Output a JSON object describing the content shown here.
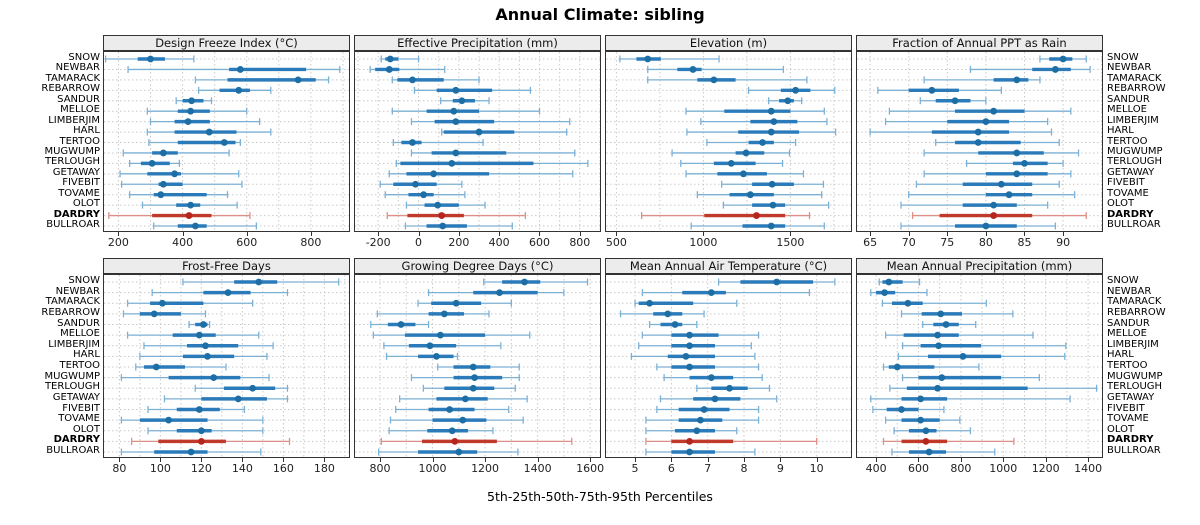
{
  "title": "Annual Climate: sibling",
  "caption": "5th-25th-50th-75th-95th Percentiles",
  "sites": [
    "SNOW",
    "NEWBAR",
    "TAMARACK",
    "REBARROW",
    "SANDUR",
    "MELLOE",
    "LIMBERJIM",
    "HARL",
    "TERTOO",
    "MUGWUMP",
    "TERLOUGH",
    "GETAWAY",
    "FIVEBIT",
    "TOVAME",
    "OLOT",
    "DARDRY",
    "BULLROAR"
  ],
  "highlight_site": "DARDRY",
  "colors": {
    "point": "#1d6ea5",
    "bar": "#2b7bba",
    "whisker": "#7cb1d6",
    "highlight_point": "#b6241e",
    "highlight_bar": "#c0392b",
    "highlight_whisker": "#dd8f88",
    "grid": "#c9c9c9",
    "strip_bg": "#ececec",
    "border": "#333333"
  },
  "chart_data": {
    "type": "dotplot",
    "note": "each site row = [p5, p25, p50, p75, p95] percentiles",
    "legend_position": "bottom-caption",
    "grid": "dotted",
    "panels": [
      {
        "title": "Design Freeze Index (°C)",
        "row": 0,
        "col": 0,
        "ticks": [
          200,
          400,
          600,
          800
        ],
        "xlim": [
          155,
          925
        ],
        "grid_step": 100,
        "values": [
          [
            160,
            260,
            300,
            345,
            435
          ],
          [
            230,
            545,
            580,
            785,
            890
          ],
          [
            440,
            540,
            760,
            815,
            855
          ],
          [
            450,
            515,
            575,
            610,
            675
          ],
          [
            380,
            400,
            428,
            465,
            490
          ],
          [
            290,
            385,
            425,
            485,
            600
          ],
          [
            300,
            375,
            417,
            485,
            640
          ],
          [
            290,
            375,
            483,
            568,
            675
          ],
          [
            295,
            385,
            530,
            565,
            580
          ],
          [
            215,
            305,
            340,
            385,
            545
          ],
          [
            235,
            270,
            305,
            360,
            390
          ],
          [
            205,
            290,
            375,
            395,
            575
          ],
          [
            210,
            325,
            340,
            400,
            585
          ],
          [
            235,
            310,
            332,
            475,
            540
          ],
          [
            275,
            380,
            425,
            455,
            570
          ],
          [
            170,
            305,
            420,
            490,
            610
          ],
          [
            310,
            385,
            440,
            475,
            630
          ]
        ]
      },
      {
        "title": "Effective Precipitation (mm)",
        "row": 0,
        "col": 1,
        "ticks": [
          -200,
          0,
          200,
          400,
          600,
          800
        ],
        "xlim": [
          -315,
          910
        ],
        "grid_step": 100,
        "values": [
          [
            -185,
            -165,
            -140,
            -100,
            0
          ],
          [
            -240,
            -215,
            -145,
            -95,
            130
          ],
          [
            -130,
            -105,
            -30,
            125,
            300
          ],
          [
            -20,
            90,
            185,
            365,
            555
          ],
          [
            110,
            170,
            215,
            280,
            350
          ],
          [
            -130,
            40,
            175,
            300,
            600
          ],
          [
            -35,
            80,
            185,
            375,
            750
          ],
          [
            115,
            125,
            300,
            475,
            735
          ],
          [
            -125,
            -85,
            -30,
            15,
            320
          ],
          [
            -35,
            65,
            185,
            435,
            775
          ],
          [
            -110,
            -90,
            165,
            570,
            840
          ],
          [
            -145,
            -60,
            75,
            350,
            765
          ],
          [
            -190,
            -125,
            -15,
            90,
            215
          ],
          [
            -165,
            -50,
            25,
            75,
            230
          ],
          [
            -60,
            30,
            95,
            200,
            330
          ],
          [
            -155,
            -55,
            115,
            225,
            530
          ],
          [
            -65,
            40,
            120,
            240,
            465
          ]
        ]
      },
      {
        "title": "Elevation (m)",
        "row": 0,
        "col": 2,
        "ticks": [
          500,
          1000,
          1500
        ],
        "xlim": [
          440,
          1860
        ],
        "grid_step": 250,
        "values": [
          [
            520,
            615,
            680,
            755,
            1090
          ],
          [
            680,
            850,
            940,
            990,
            1460
          ],
          [
            680,
            965,
            1060,
            1185,
            1595
          ],
          [
            1260,
            1445,
            1530,
            1615,
            1755
          ],
          [
            1375,
            1435,
            1485,
            1520,
            1565
          ],
          [
            900,
            1120,
            1390,
            1500,
            1695
          ],
          [
            985,
            1270,
            1405,
            1540,
            1710
          ],
          [
            905,
            1200,
            1390,
            1550,
            1760
          ],
          [
            1020,
            1260,
            1340,
            1405,
            1530
          ],
          [
            820,
            1185,
            1245,
            1350,
            1495
          ],
          [
            870,
            1060,
            1160,
            1300,
            1455
          ],
          [
            900,
            1080,
            1230,
            1365,
            1575
          ],
          [
            1105,
            1280,
            1395,
            1520,
            1690
          ],
          [
            965,
            1150,
            1270,
            1405,
            1680
          ],
          [
            1115,
            1280,
            1400,
            1470,
            1720
          ],
          [
            645,
            1005,
            1305,
            1470,
            1610
          ],
          [
            930,
            1225,
            1390,
            1470,
            1695
          ]
        ]
      },
      {
        "title": "Fraction of Annual PPT as Rain",
        "row": 0,
        "col": 3,
        "ticks": [
          65,
          70,
          75,
          80,
          85,
          90
        ],
        "xlim": [
          63.3,
          95.3
        ],
        "grid_step": 5,
        "values": [
          [
            87,
            88.2,
            90,
            91.2,
            93
          ],
          [
            78,
            86,
            89,
            91,
            93.5
          ],
          [
            72,
            81,
            84,
            85.5,
            87
          ],
          [
            66,
            70,
            73,
            76.5,
            82
          ],
          [
            71.5,
            73.5,
            76,
            78,
            80
          ],
          [
            67.5,
            76,
            81,
            85,
            91
          ],
          [
            67,
            75,
            80,
            83,
            88
          ],
          [
            65,
            73,
            79,
            83,
            88.5
          ],
          [
            73.5,
            76,
            79,
            84.5,
            89.5
          ],
          [
            72,
            79,
            84,
            87.5,
            92
          ],
          [
            77.5,
            83.5,
            85,
            88,
            90
          ],
          [
            72,
            80,
            84,
            88,
            91
          ],
          [
            71,
            77,
            82,
            86,
            89.5
          ],
          [
            70,
            80,
            83,
            86,
            91.5
          ],
          [
            69,
            77,
            81,
            84,
            88
          ],
          [
            70.5,
            74,
            81,
            86,
            93
          ],
          [
            69,
            76,
            80,
            84,
            89
          ]
        ]
      },
      {
        "title": "Frost-Free Days",
        "row": 1,
        "col": 0,
        "ticks": [
          80,
          100,
          120,
          140,
          160,
          180
        ],
        "xlim": [
          72.5,
          193
        ],
        "grid_step": 10,
        "values": [
          [
            111,
            136,
            148,
            157,
            187
          ],
          [
            96,
            121,
            133,
            144,
            162
          ],
          [
            84,
            95,
            101,
            121,
            145
          ],
          [
            82,
            90,
            97,
            110,
            122
          ],
          [
            114,
            117,
            121,
            123,
            124
          ],
          [
            84,
            106,
            119,
            127,
            148
          ],
          [
            92,
            113,
            122,
            138,
            155
          ],
          [
            90,
            111,
            123,
            136,
            152
          ],
          [
            88,
            92,
            98,
            112,
            132
          ],
          [
            81,
            104,
            126,
            139,
            153
          ],
          [
            117,
            131,
            145,
            156,
            162
          ],
          [
            102,
            120,
            138,
            152,
            162
          ],
          [
            94,
            108,
            119,
            129,
            141
          ],
          [
            81,
            90,
            104,
            123,
            150
          ],
          [
            94,
            108,
            120,
            125,
            150
          ],
          [
            86,
            99,
            120,
            132,
            163
          ],
          [
            81,
            97,
            115,
            123,
            149
          ]
        ]
      },
      {
        "title": "Growing Degree Days (°C)",
        "row": 1,
        "col": 1,
        "ticks": [
          800,
          1000,
          1200,
          1400,
          1600
        ],
        "xlim": [
          705,
          1645
        ],
        "grid_step": 100,
        "values": [
          [
            1195,
            1265,
            1350,
            1410,
            1590
          ],
          [
            985,
            1155,
            1255,
            1400,
            1500
          ],
          [
            945,
            995,
            1090,
            1185,
            1300
          ],
          [
            790,
            985,
            1045,
            1120,
            1215
          ],
          [
            765,
            830,
            880,
            935,
            985
          ],
          [
            775,
            895,
            1030,
            1200,
            1370
          ],
          [
            815,
            910,
            990,
            1090,
            1260
          ],
          [
            825,
            945,
            1015,
            1080,
            1095
          ],
          [
            1020,
            1080,
            1155,
            1220,
            1330
          ],
          [
            920,
            1080,
            1160,
            1265,
            1330
          ],
          [
            965,
            1045,
            1155,
            1235,
            1315
          ],
          [
            875,
            1015,
            1125,
            1210,
            1360
          ],
          [
            860,
            985,
            1065,
            1160,
            1290
          ],
          [
            840,
            1000,
            1115,
            1205,
            1345
          ],
          [
            835,
            980,
            1075,
            1135,
            1230
          ],
          [
            805,
            960,
            1085,
            1245,
            1530
          ],
          [
            795,
            945,
            1100,
            1170,
            1325
          ]
        ]
      },
      {
        "title": "Mean Annual Air Temperature (°C)",
        "row": 1,
        "col": 2,
        "ticks": [
          5,
          6,
          7,
          8,
          9,
          10
        ],
        "xlim": [
          4.2,
          11.0
        ],
        "grid_step": 1,
        "values": [
          [
            7.3,
            7.9,
            8.9,
            9.9,
            10.5
          ],
          [
            5.2,
            6.3,
            7.1,
            7.5,
            9.8
          ],
          [
            5.0,
            5.1,
            5.4,
            6.6,
            7.8
          ],
          [
            4.6,
            5.5,
            5.9,
            6.3,
            6.9
          ],
          [
            5.4,
            5.7,
            6.1,
            6.3,
            6.7
          ],
          [
            5.2,
            6.0,
            6.5,
            7.3,
            8.4
          ],
          [
            5.1,
            6.0,
            6.5,
            7.2,
            8.2
          ],
          [
            4.9,
            5.9,
            6.4,
            7.2,
            8.3
          ],
          [
            5.6,
            6.0,
            6.5,
            7.2,
            8.4
          ],
          [
            5.8,
            6.5,
            7.1,
            7.7,
            8.5
          ],
          [
            6.7,
            7.1,
            7.6,
            8.1,
            8.7
          ],
          [
            5.7,
            6.6,
            7.2,
            7.9,
            8.9
          ],
          [
            5.6,
            6.2,
            6.9,
            7.6,
            8.4
          ],
          [
            5.3,
            6.2,
            6.8,
            7.4,
            8.4
          ],
          [
            5.3,
            6.1,
            6.7,
            7.2,
            7.8
          ],
          [
            5.3,
            6.0,
            6.5,
            7.7,
            10.0
          ],
          [
            5.3,
            6.0,
            6.5,
            7.2,
            8.3
          ]
        ]
      },
      {
        "title": "Mean Annual Precipitation (mm)",
        "row": 1,
        "col": 3,
        "ticks": [
          400,
          600,
          800,
          1000,
          1200,
          1400
        ],
        "xlim": [
          310,
          1475
        ],
        "grid_step": 100,
        "values": [
          [
            415,
            430,
            460,
            525,
            605
          ],
          [
            375,
            400,
            440,
            490,
            640
          ],
          [
            430,
            475,
            550,
            620,
            920
          ],
          [
            520,
            615,
            705,
            805,
            1045
          ],
          [
            620,
            670,
            730,
            790,
            870
          ],
          [
            445,
            530,
            690,
            790,
            1140
          ],
          [
            525,
            610,
            695,
            895,
            1295
          ],
          [
            505,
            645,
            810,
            990,
            1290
          ],
          [
            435,
            460,
            500,
            675,
            885
          ],
          [
            525,
            600,
            710,
            990,
            1170
          ],
          [
            465,
            545,
            690,
            1115,
            1440
          ],
          [
            375,
            520,
            610,
            735,
            1315
          ],
          [
            385,
            450,
            520,
            600,
            720
          ],
          [
            445,
            520,
            610,
            700,
            795
          ],
          [
            485,
            555,
            635,
            685,
            845
          ],
          [
            435,
            520,
            635,
            735,
            1050
          ],
          [
            475,
            555,
            650,
            730,
            960
          ]
        ]
      }
    ]
  }
}
